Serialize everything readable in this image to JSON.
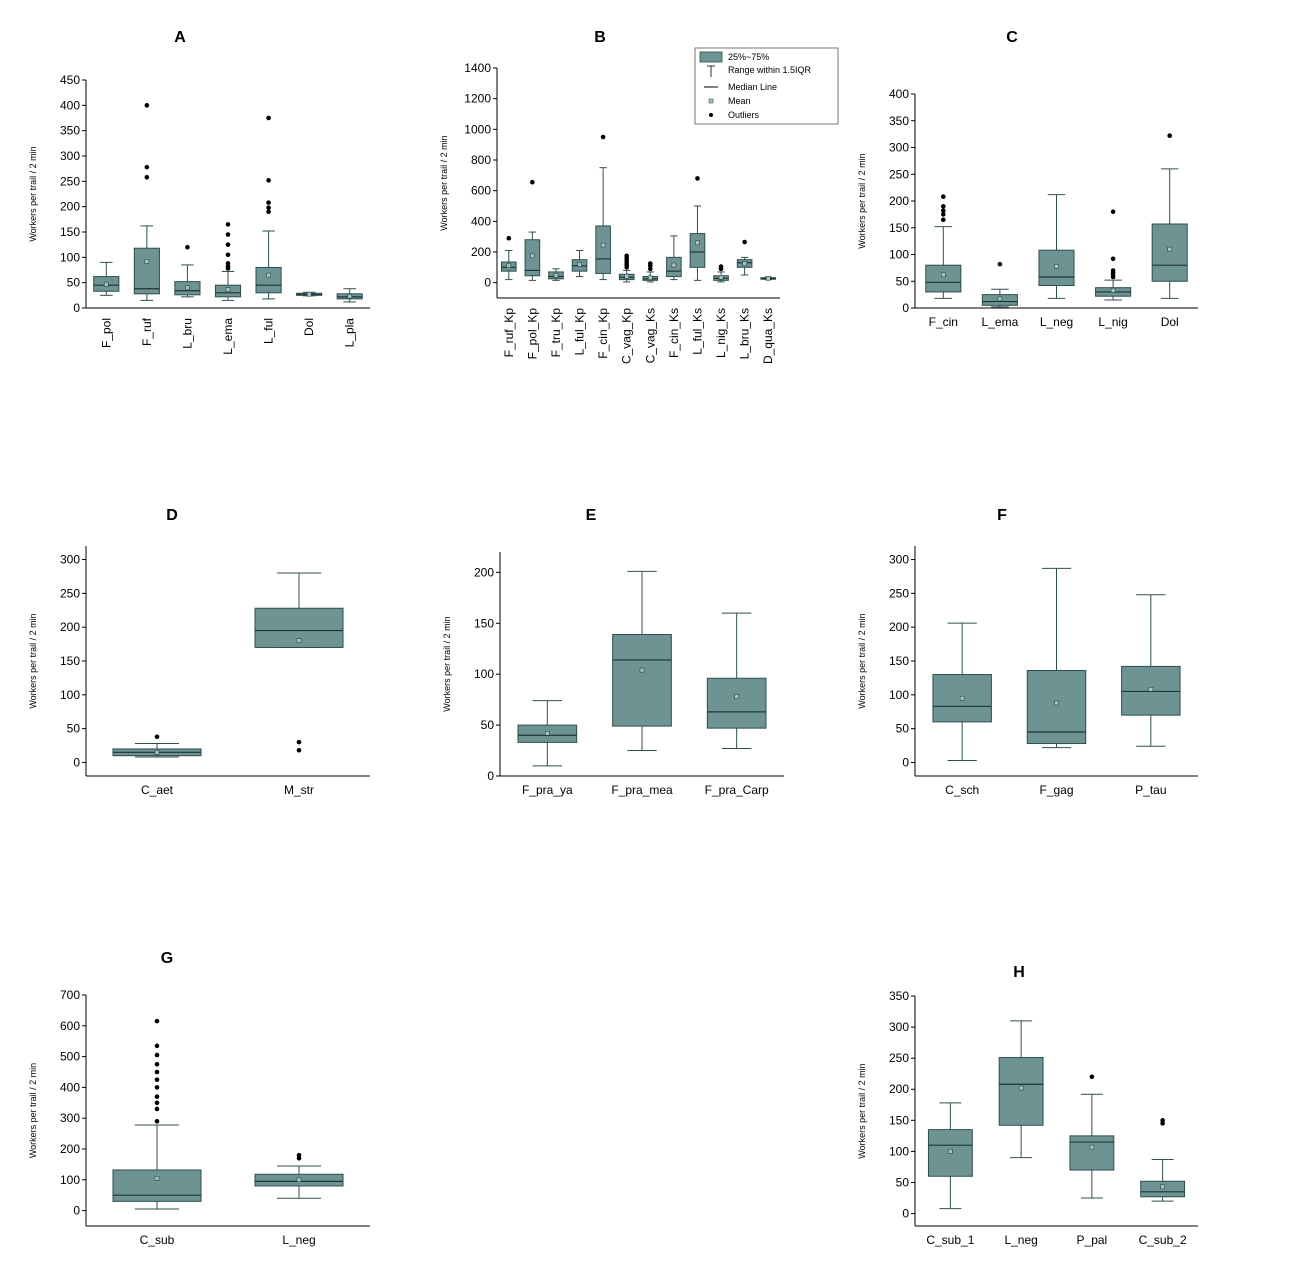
{
  "colors": {
    "box_fill": "#6d9393",
    "box_stroke": "#2f4f4f",
    "mean_fill": "#a9c3c3"
  },
  "legend": [
    "25%~75%",
    "Range within 1.5IQR",
    "Median Line",
    "Mean",
    "Outliers"
  ],
  "chart_data": [
    {
      "type": "box",
      "title": "A",
      "ylabel": "Workers per trail / 2 min",
      "ylim": [
        0,
        450
      ],
      "yticks": [
        0,
        50,
        100,
        150,
        200,
        250,
        300,
        350,
        400,
        450
      ],
      "rotate_labels": true,
      "boxes": [
        {
          "label": "F_pol",
          "whisker_low": 25,
          "q1": 33,
          "median": 45,
          "q3": 62,
          "whisker_high": 90,
          "mean": 47,
          "outliers": []
        },
        {
          "label": "F_ruf",
          "whisker_low": 15,
          "q1": 28,
          "median": 38,
          "q3": 118,
          "whisker_high": 162,
          "mean": 92,
          "outliers": [
            258,
            278,
            400
          ]
        },
        {
          "label": "L_bru",
          "whisker_low": 22,
          "q1": 26,
          "median": 34,
          "q3": 52,
          "whisker_high": 85,
          "mean": 40,
          "outliers": [
            120
          ]
        },
        {
          "label": "L_ema",
          "whisker_low": 15,
          "q1": 22,
          "median": 30,
          "q3": 45,
          "whisker_high": 72,
          "mean": 36,
          "outliers": [
            78,
            82,
            88,
            105,
            125,
            145,
            165
          ]
        },
        {
          "label": "L_ful",
          "whisker_low": 18,
          "q1": 30,
          "median": 45,
          "q3": 80,
          "whisker_high": 152,
          "mean": 65,
          "outliers": [
            190,
            198,
            208,
            252,
            375
          ]
        },
        {
          "label": "Dol",
          "whisker_low": 24,
          "q1": 25,
          "median": 27,
          "q3": 29,
          "whisker_high": 31,
          "mean": 27,
          "outliers": []
        },
        {
          "label": "L_pla",
          "whisker_low": 12,
          "q1": 18,
          "median": 22,
          "q3": 28,
          "whisker_high": 38,
          "mean": 23,
          "outliers": []
        }
      ]
    },
    {
      "type": "box",
      "title": "B",
      "ylabel": "Workers per trail / 2 min",
      "ylim": [
        -100,
        1400
      ],
      "yticks": [
        0,
        200,
        400,
        600,
        800,
        1000,
        1200,
        1400
      ],
      "rotate_labels": true,
      "boxes": [
        {
          "label": "F_ruf_Kp",
          "whisker_low": 20,
          "q1": 75,
          "median": 100,
          "q3": 135,
          "whisker_high": 210,
          "mean": 110,
          "outliers": [
            290
          ]
        },
        {
          "label": "F_pol_Kp",
          "whisker_low": 15,
          "q1": 45,
          "median": 80,
          "q3": 280,
          "whisker_high": 330,
          "mean": 175,
          "outliers": [
            655
          ]
        },
        {
          "label": "F_tru_Kp",
          "whisker_low": 15,
          "q1": 25,
          "median": 40,
          "q3": 70,
          "whisker_high": 90,
          "mean": 48,
          "outliers": []
        },
        {
          "label": "L_ful_Kp",
          "whisker_low": 40,
          "q1": 75,
          "median": 110,
          "q3": 150,
          "whisker_high": 210,
          "mean": 118,
          "outliers": []
        },
        {
          "label": "F_cin_Kp",
          "whisker_low": 20,
          "q1": 60,
          "median": 155,
          "q3": 370,
          "whisker_high": 750,
          "mean": 245,
          "outliers": [
            950
          ]
        },
        {
          "label": "C_vag_Kp",
          "whisker_low": 5,
          "q1": 20,
          "median": 35,
          "q3": 55,
          "whisker_high": 80,
          "mean": 42,
          "outliers": [
            100,
            115,
            130,
            145,
            160,
            175
          ]
        },
        {
          "label": "C_vag_Ks",
          "whisker_low": 5,
          "q1": 15,
          "median": 25,
          "q3": 40,
          "whisker_high": 70,
          "mean": 32,
          "outliers": [
            90,
            110,
            125
          ]
        },
        {
          "label": "F_cin_Ks",
          "whisker_low": 20,
          "q1": 40,
          "median": 75,
          "q3": 165,
          "whisker_high": 305,
          "mean": 115,
          "outliers": []
        },
        {
          "label": "L_ful_Ks",
          "whisker_low": 15,
          "q1": 100,
          "median": 200,
          "q3": 320,
          "whisker_high": 500,
          "mean": 260,
          "outliers": [
            680
          ]
        },
        {
          "label": "L_nig_Ks",
          "whisker_low": 5,
          "q1": 15,
          "median": 28,
          "q3": 45,
          "whisker_high": 70,
          "mean": 35,
          "outliers": [
            90,
            105
          ]
        },
        {
          "label": "L_bru_Ks",
          "whisker_low": 50,
          "q1": 100,
          "median": 130,
          "q3": 150,
          "whisker_high": 165,
          "mean": 125,
          "outliers": [
            265
          ]
        },
        {
          "label": "D_qua_Ks",
          "whisker_low": 20,
          "q1": 25,
          "median": 28,
          "q3": 32,
          "whisker_high": 36,
          "mean": 28,
          "outliers": []
        }
      ],
      "legend_location": "top-right"
    },
    {
      "type": "box",
      "title": "C",
      "ylabel": "Workers per trail / 2 min",
      "ylim": [
        0,
        400
      ],
      "yticks": [
        0,
        50,
        100,
        150,
        200,
        250,
        300,
        350,
        400
      ],
      "rotate_labels": false,
      "boxes": [
        {
          "label": "F_cin",
          "whisker_low": 18,
          "q1": 30,
          "median": 48,
          "q3": 80,
          "whisker_high": 152,
          "mean": 62,
          "outliers": [
            165,
            175,
            182,
            190,
            208
          ]
        },
        {
          "label": "L_ema",
          "whisker_low": 2,
          "q1": 5,
          "median": 12,
          "q3": 25,
          "whisker_high": 35,
          "mean": 17,
          "outliers": [
            82
          ]
        },
        {
          "label": "L_neg",
          "whisker_low": 18,
          "q1": 42,
          "median": 58,
          "q3": 108,
          "whisker_high": 212,
          "mean": 78,
          "outliers": []
        },
        {
          "label": "L_nig",
          "whisker_low": 15,
          "q1": 22,
          "median": 30,
          "q3": 38,
          "whisker_high": 52,
          "mean": 33,
          "outliers": [
            58,
            62,
            66,
            70,
            92,
            180
          ]
        },
        {
          "label": "Dol",
          "whisker_low": 18,
          "q1": 50,
          "median": 80,
          "q3": 157,
          "whisker_high": 260,
          "mean": 110,
          "outliers": [
            322
          ]
        }
      ]
    },
    {
      "type": "box",
      "title": "D",
      "ylabel": "Workers per trail / 2 min",
      "ylim": [
        -20,
        320
      ],
      "yticks": [
        0,
        50,
        100,
        150,
        200,
        250,
        300
      ],
      "rotate_labels": false,
      "boxes": [
        {
          "label": "C_aet",
          "whisker_low": 8,
          "q1": 10,
          "median": 15,
          "q3": 20,
          "whisker_high": 28,
          "mean": 15,
          "outliers": [
            38
          ]
        },
        {
          "label": "M_str",
          "whisker_low": 170,
          "q1": 170,
          "median": 195,
          "q3": 228,
          "whisker_high": 280,
          "mean": 180,
          "outliers": [
            18,
            30
          ]
        }
      ]
    },
    {
      "type": "box",
      "title": "E",
      "ylabel": "Workers per trail / 2 min",
      "ylim": [
        0,
        220
      ],
      "yticks": [
        0,
        50,
        100,
        150,
        200
      ],
      "rotate_labels": false,
      "boxes": [
        {
          "label": "F_pra_ya",
          "whisker_low": 10,
          "q1": 33,
          "median": 40,
          "q3": 50,
          "whisker_high": 74,
          "mean": 42,
          "outliers": []
        },
        {
          "label": "F_pra_mea",
          "whisker_low": 25,
          "q1": 49,
          "median": 114,
          "q3": 139,
          "whisker_high": 201,
          "mean": 104,
          "outliers": []
        },
        {
          "label": "F_pra_Carp",
          "whisker_low": 27,
          "q1": 47,
          "median": 63,
          "q3": 96,
          "whisker_high": 160,
          "mean": 78,
          "outliers": []
        }
      ]
    },
    {
      "type": "box",
      "title": "F",
      "ylabel": "Workers per trail / 2 min",
      "ylim": [
        -20,
        320
      ],
      "yticks": [
        0,
        50,
        100,
        150,
        200,
        250,
        300
      ],
      "rotate_labels": false,
      "boxes": [
        {
          "label": "C_sch",
          "whisker_low": 3,
          "q1": 60,
          "median": 83,
          "q3": 130,
          "whisker_high": 206,
          "mean": 95,
          "outliers": []
        },
        {
          "label": "F_gag",
          "whisker_low": 22,
          "q1": 28,
          "median": 45,
          "q3": 136,
          "whisker_high": 287,
          "mean": 88,
          "outliers": []
        },
        {
          "label": "P_tau",
          "whisker_low": 24,
          "q1": 70,
          "median": 105,
          "q3": 142,
          "whisker_high": 248,
          "mean": 108,
          "outliers": []
        }
      ]
    },
    {
      "type": "box",
      "title": "G",
      "ylabel": "Workers per trail / 2 min",
      "ylim": [
        -50,
        700
      ],
      "yticks": [
        0,
        100,
        200,
        300,
        400,
        500,
        600,
        700
      ],
      "rotate_labels": false,
      "boxes": [
        {
          "label": "C_sub",
          "whisker_low": 5,
          "q1": 30,
          "median": 50,
          "q3": 132,
          "whisker_high": 278,
          "mean": 105,
          "outliers": [
            290,
            330,
            350,
            370,
            400,
            425,
            450,
            475,
            505,
            535,
            615
          ]
        },
        {
          "label": "L_neg",
          "whisker_low": 40,
          "q1": 80,
          "median": 95,
          "q3": 118,
          "whisker_high": 145,
          "mean": 100,
          "outliers": [
            170,
            180
          ]
        }
      ]
    },
    {
      "type": "box",
      "title": "H",
      "ylabel": "Workers per trail / 2 min",
      "ylim": [
        -20,
        350
      ],
      "yticks": [
        0,
        50,
        100,
        150,
        200,
        250,
        300,
        350
      ],
      "rotate_labels": false,
      "boxes": [
        {
          "label": "C_sub_1",
          "whisker_low": 8,
          "q1": 60,
          "median": 110,
          "q3": 135,
          "whisker_high": 178,
          "mean": 100,
          "outliers": []
        },
        {
          "label": "L_neg",
          "whisker_low": 90,
          "q1": 142,
          "median": 208,
          "q3": 251,
          "whisker_high": 310,
          "mean": 202,
          "outliers": []
        },
        {
          "label": "P_pal",
          "whisker_low": 25,
          "q1": 70,
          "median": 115,
          "q3": 125,
          "whisker_high": 192,
          "mean": 107,
          "outliers": [
            220
          ]
        },
        {
          "label": "C_sub_2",
          "whisker_low": 20,
          "q1": 27,
          "median": 35,
          "q3": 52,
          "whisker_high": 87,
          "mean": 43,
          "outliers": [
            145,
            150
          ]
        }
      ]
    }
  ]
}
